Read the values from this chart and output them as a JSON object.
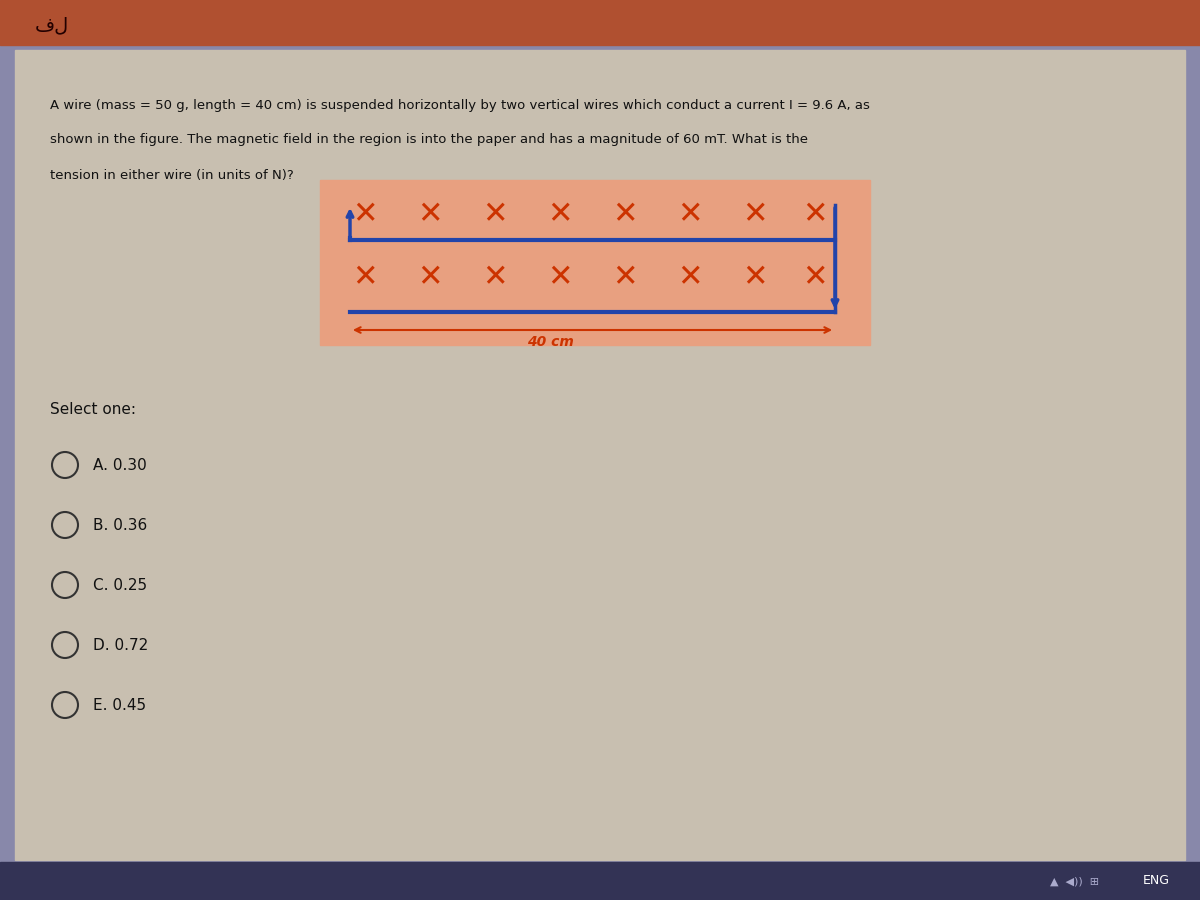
{
  "bg_color": "#c8b8a2",
  "content_bg": "#d4c8b8",
  "top_bar_color": "#b05030",
  "question_text_line1": "A wire (mass = 50 g, length = 40 cm) is suspended horizontally by two vertical wires which conduct a current I = 9.6 A, as",
  "question_text_line2": "shown in the figure. The magnetic field in the region is into the paper and has a magnitude of 60 mT. What is the",
  "question_text_line3": "tension in either wire (in units of N)?",
  "diagram_bg": "#e8a080",
  "wire_color": "#2244aa",
  "x_color": "#cc3300",
  "label_color": "#cc3300",
  "label_text": "40 cm",
  "select_label": "Select one:",
  "options": [
    "A. 0.30",
    "B. 0.36",
    "C. 0.25",
    "D. 0.72",
    "E. 0.45"
  ],
  "page_bg": "#8888aa",
  "arabic_char": "فل",
  "footer_text": "ENG"
}
